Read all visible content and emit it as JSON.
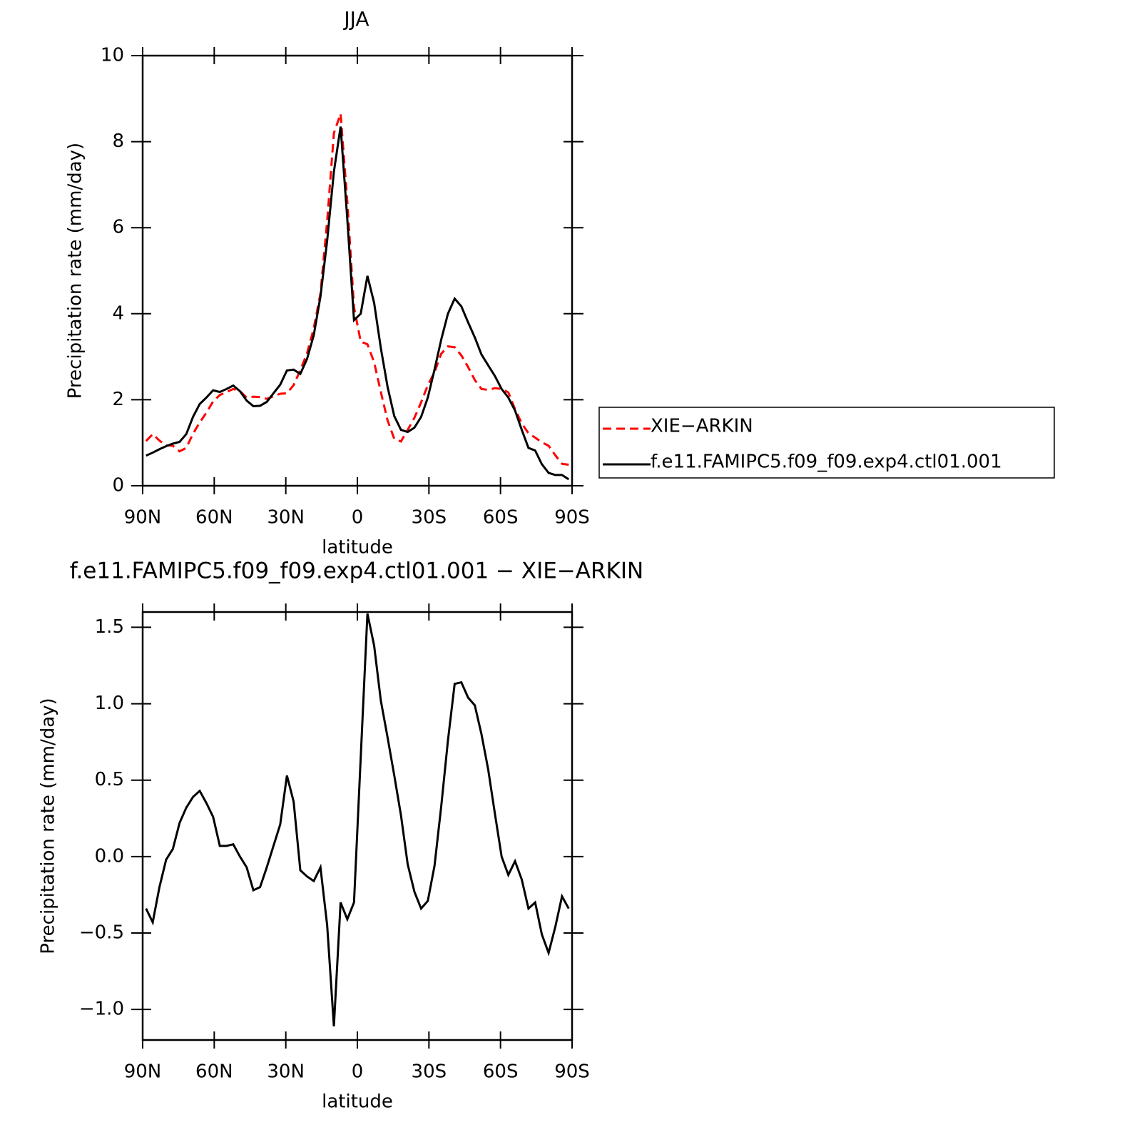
{
  "chart_data": [
    {
      "type": "line",
      "title": "JJA",
      "xlabel": "latitude",
      "ylabel": "Precipitation rate (mm/day)",
      "x": [
        88.59,
        85.78,
        82.97,
        80.16,
        77.34,
        74.53,
        71.72,
        68.91,
        66.09,
        63.28,
        60.47,
        57.66,
        54.84,
        52.03,
        49.22,
        46.41,
        43.59,
        40.78,
        37.97,
        35.16,
        32.34,
        29.53,
        26.72,
        23.91,
        21.09,
        18.28,
        15.47,
        12.66,
        9.84,
        7.03,
        4.22,
        1.41,
        -1.41,
        -4.22,
        -7.03,
        -9.84,
        -12.66,
        -15.47,
        -18.28,
        -21.09,
        -23.91,
        -26.72,
        -29.53,
        -32.34,
        -35.16,
        -37.97,
        -40.78,
        -43.59,
        -46.41,
        -49.22,
        -52.03,
        -54.84,
        -57.66,
        -60.47,
        -63.28,
        -66.09,
        -68.91,
        -71.72,
        -74.53,
        -77.34,
        -80.16,
        -82.97,
        -85.78,
        -88.59
      ],
      "xlim": [
        90,
        -90
      ],
      "xticks": [
        {
          "value": 90,
          "label": "90N"
        },
        {
          "value": 60,
          "label": "60N"
        },
        {
          "value": 30,
          "label": "30N"
        },
        0,
        {
          "value": -30,
          "label": "30S"
        },
        {
          "value": -60,
          "label": "60S"
        },
        {
          "value": -90,
          "label": "90S"
        }
      ],
      "ylim": [
        0,
        10
      ],
      "yticks": [
        0,
        2,
        4,
        6,
        8,
        10
      ],
      "legend": "right",
      "series": [
        {
          "name": "XIE−ARKIN",
          "color": "#ff0000",
          "linestyle": "dashed",
          "values": [
            1.04,
            1.2,
            1.05,
            0.94,
            0.93,
            0.8,
            0.88,
            1.21,
            1.47,
            1.7,
            1.96,
            2.11,
            2.18,
            2.25,
            2.2,
            2.05,
            2.07,
            2.06,
            2.02,
            2.08,
            2.14,
            2.15,
            2.34,
            2.69,
            3.08,
            3.66,
            4.47,
            6.15,
            8.2,
            8.65,
            6.61,
            4.15,
            3.35,
            3.29,
            2.87,
            2.18,
            1.52,
            1.09,
            1.03,
            1.3,
            1.58,
            1.94,
            2.34,
            2.64,
            3.07,
            3.24,
            3.22,
            3.03,
            2.76,
            2.46,
            2.25,
            2.23,
            2.27,
            2.25,
            2.17,
            1.78,
            1.45,
            1.22,
            1.12,
            1.01,
            0.93,
            0.71,
            0.51,
            0.49
          ]
        },
        {
          "name": "f.e11.FAMIPC5.f09_f09.exp4.ctl01.001",
          "color": "#000000",
          "linestyle": "solid",
          "values": [
            0.7,
            0.77,
            0.85,
            0.92,
            0.98,
            1.02,
            1.2,
            1.6,
            1.9,
            2.05,
            2.22,
            2.18,
            2.25,
            2.33,
            2.2,
            1.98,
            1.85,
            1.86,
            1.95,
            2.15,
            2.35,
            2.68,
            2.7,
            2.6,
            2.95,
            3.5,
            4.4,
            5.7,
            7.3,
            8.35,
            6.2,
            3.85,
            4.0,
            4.88,
            4.25,
            3.2,
            2.3,
            1.62,
            1.3,
            1.25,
            1.35,
            1.6,
            2.05,
            2.7,
            3.4,
            4.0,
            4.35,
            4.17,
            3.8,
            3.45,
            3.05,
            2.8,
            2.55,
            2.25,
            2.05,
            1.75,
            1.3,
            0.88,
            0.82,
            0.5,
            0.3,
            0.25,
            0.25,
            0.15
          ]
        }
      ]
    },
    {
      "type": "line",
      "title": "f.e11.FAMIPC5.f09_f09.exp4.ctl01.001 − XIE−ARKIN",
      "xlabel": "latitude",
      "ylabel": "Precipitation rate (mm/day)",
      "x": [
        88.59,
        85.78,
        82.97,
        80.16,
        77.34,
        74.53,
        71.72,
        68.91,
        66.09,
        63.28,
        60.47,
        57.66,
        54.84,
        52.03,
        49.22,
        46.41,
        43.59,
        40.78,
        37.97,
        35.16,
        32.34,
        29.53,
        26.72,
        23.91,
        21.09,
        18.28,
        15.47,
        12.66,
        9.84,
        7.03,
        4.22,
        1.41,
        -1.41,
        -4.22,
        -7.03,
        -9.84,
        -12.66,
        -15.47,
        -18.28,
        -21.09,
        -23.91,
        -26.72,
        -29.53,
        -32.34,
        -35.16,
        -37.97,
        -40.78,
        -43.59,
        -46.41,
        -49.22,
        -52.03,
        -54.84,
        -57.66,
        -60.47,
        -63.28,
        -66.09,
        -68.91,
        -71.72,
        -74.53,
        -77.34,
        -80.16,
        -82.97,
        -85.78,
        -88.59
      ],
      "xlim": [
        90,
        -90
      ],
      "xticks": [
        {
          "value": 90,
          "label": "90N"
        },
        {
          "value": 60,
          "label": "60N"
        },
        {
          "value": 30,
          "label": "30N"
        },
        0,
        {
          "value": -30,
          "label": "30S"
        },
        {
          "value": -60,
          "label": "60S"
        },
        {
          "value": -90,
          "label": "90S"
        }
      ],
      "ylim": [
        -1.2,
        1.6
      ],
      "yticks": [
        {
          "value": -1,
          "label": "−1.0"
        },
        {
          "value": -0.5,
          "label": "−0.5"
        },
        {
          "value": 0,
          "label": "0.0"
        },
        {
          "value": 0.5,
          "label": "0.5"
        },
        {
          "value": 1,
          "label": "1.0"
        },
        {
          "value": 1.5,
          "label": "1.5"
        }
      ],
      "color": "#000000",
      "values": [
        -0.34,
        -0.43,
        -0.2,
        -0.02,
        0.05,
        0.22,
        0.32,
        0.39,
        0.43,
        0.35,
        0.26,
        0.07,
        0.07,
        0.08,
        0.0,
        -0.07,
        -0.22,
        -0.2,
        -0.07,
        0.07,
        0.21,
        0.53,
        0.36,
        -0.09,
        -0.13,
        -0.16,
        -0.07,
        -0.45,
        -1.11,
        -0.3,
        -0.41,
        -0.3,
        0.65,
        1.59,
        1.38,
        1.02,
        0.78,
        0.53,
        0.27,
        -0.05,
        -0.23,
        -0.34,
        -0.29,
        -0.06,
        0.33,
        0.76,
        1.13,
        1.14,
        1.04,
        0.99,
        0.8,
        0.57,
        0.28,
        0.0,
        -0.12,
        -0.03,
        -0.15,
        -0.34,
        -0.3,
        -0.51,
        -0.63,
        -0.46,
        -0.26,
        -0.34
      ]
    }
  ]
}
